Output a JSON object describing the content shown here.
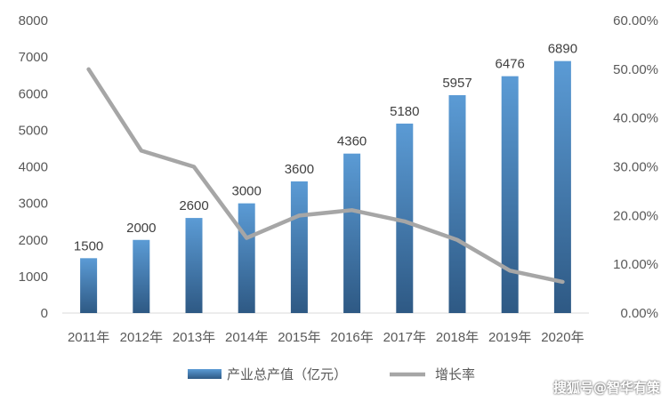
{
  "chart_data": {
    "type": "bar",
    "categories": [
      "2011年",
      "2012年",
      "2013年",
      "2014年",
      "2015年",
      "2016年",
      "2017年",
      "2018年",
      "2019年",
      "2020年"
    ],
    "series": [
      {
        "name": "产业总产值（亿元）",
        "type": "bar",
        "axis": "left",
        "values": [
          1500,
          2000,
          2600,
          3000,
          3600,
          4360,
          5180,
          5957,
          6476,
          6890
        ],
        "color_top": "#5b9bd5",
        "color_bottom": "#2e5984"
      },
      {
        "name": "增长率",
        "type": "line",
        "axis": "right",
        "values": [
          0.5,
          0.333,
          0.3,
          0.154,
          0.2,
          0.211,
          0.188,
          0.15,
          0.087,
          0.064
        ],
        "color": "#a6a6a6"
      }
    ],
    "y_left": {
      "min": 0,
      "max": 8000,
      "ticks": [
        "0",
        "1000",
        "2000",
        "3000",
        "4000",
        "5000",
        "6000",
        "7000",
        "8000"
      ]
    },
    "y_right": {
      "min": 0,
      "max": 0.6,
      "ticks": [
        "0.00%",
        "10.00%",
        "20.00%",
        "30.00%",
        "40.00%",
        "50.00%",
        "60.00%"
      ]
    },
    "data_labels": [
      "1500",
      "2000",
      "2600",
      "3000",
      "3600",
      "4360",
      "5180",
      "5957",
      "6476",
      "6890"
    ],
    "grid": false,
    "legend_position": "bottom",
    "title": "",
    "xlabel": "",
    "ylabel": ""
  },
  "watermark": "搜狐号@智华有策"
}
